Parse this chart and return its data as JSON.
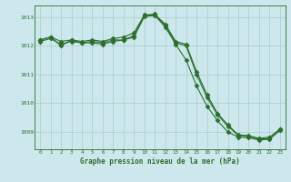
{
  "title": "Graphe pression niveau de la mer (hPa)",
  "background_color": "#cce8ec",
  "grid_color": "#aacccc",
  "line_color": "#2d6e2d",
  "marker_color": "#2d6e2d",
  "xlim": [
    -0.5,
    23.5
  ],
  "ylim": [
    1008.4,
    1013.4
  ],
  "yticks": [
    1009,
    1010,
    1011,
    1012,
    1013
  ],
  "xticks": [
    0,
    1,
    2,
    3,
    4,
    5,
    6,
    7,
    8,
    9,
    10,
    11,
    12,
    13,
    14,
    15,
    16,
    17,
    18,
    19,
    20,
    21,
    22,
    23
  ],
  "series1": [
    1012.2,
    1012.3,
    1012.0,
    1012.2,
    1012.1,
    1012.15,
    1012.1,
    1012.2,
    1012.2,
    1012.35,
    1013.05,
    1013.1,
    1012.7,
    1012.1,
    1012.0,
    1011.0,
    1010.2,
    1009.6,
    1009.2,
    1008.88,
    1008.85,
    1008.75,
    1008.78,
    1009.1
  ],
  "series2": [
    1012.15,
    1012.25,
    1012.05,
    1012.15,
    1012.1,
    1012.1,
    1012.05,
    1012.15,
    1012.2,
    1012.3,
    1013.02,
    1013.05,
    1012.65,
    1012.05,
    1011.5,
    1010.6,
    1009.9,
    1009.4,
    1009.0,
    1008.82,
    1008.8,
    1008.72,
    1008.75,
    1009.05
  ],
  "series3": [
    1012.2,
    1012.3,
    1012.15,
    1012.2,
    1012.15,
    1012.2,
    1012.15,
    1012.25,
    1012.3,
    1012.45,
    1013.07,
    1013.08,
    1012.75,
    1012.15,
    1012.05,
    1011.1,
    1010.3,
    1009.65,
    1009.25,
    1008.9,
    1008.87,
    1008.78,
    1008.82,
    1009.1
  ]
}
